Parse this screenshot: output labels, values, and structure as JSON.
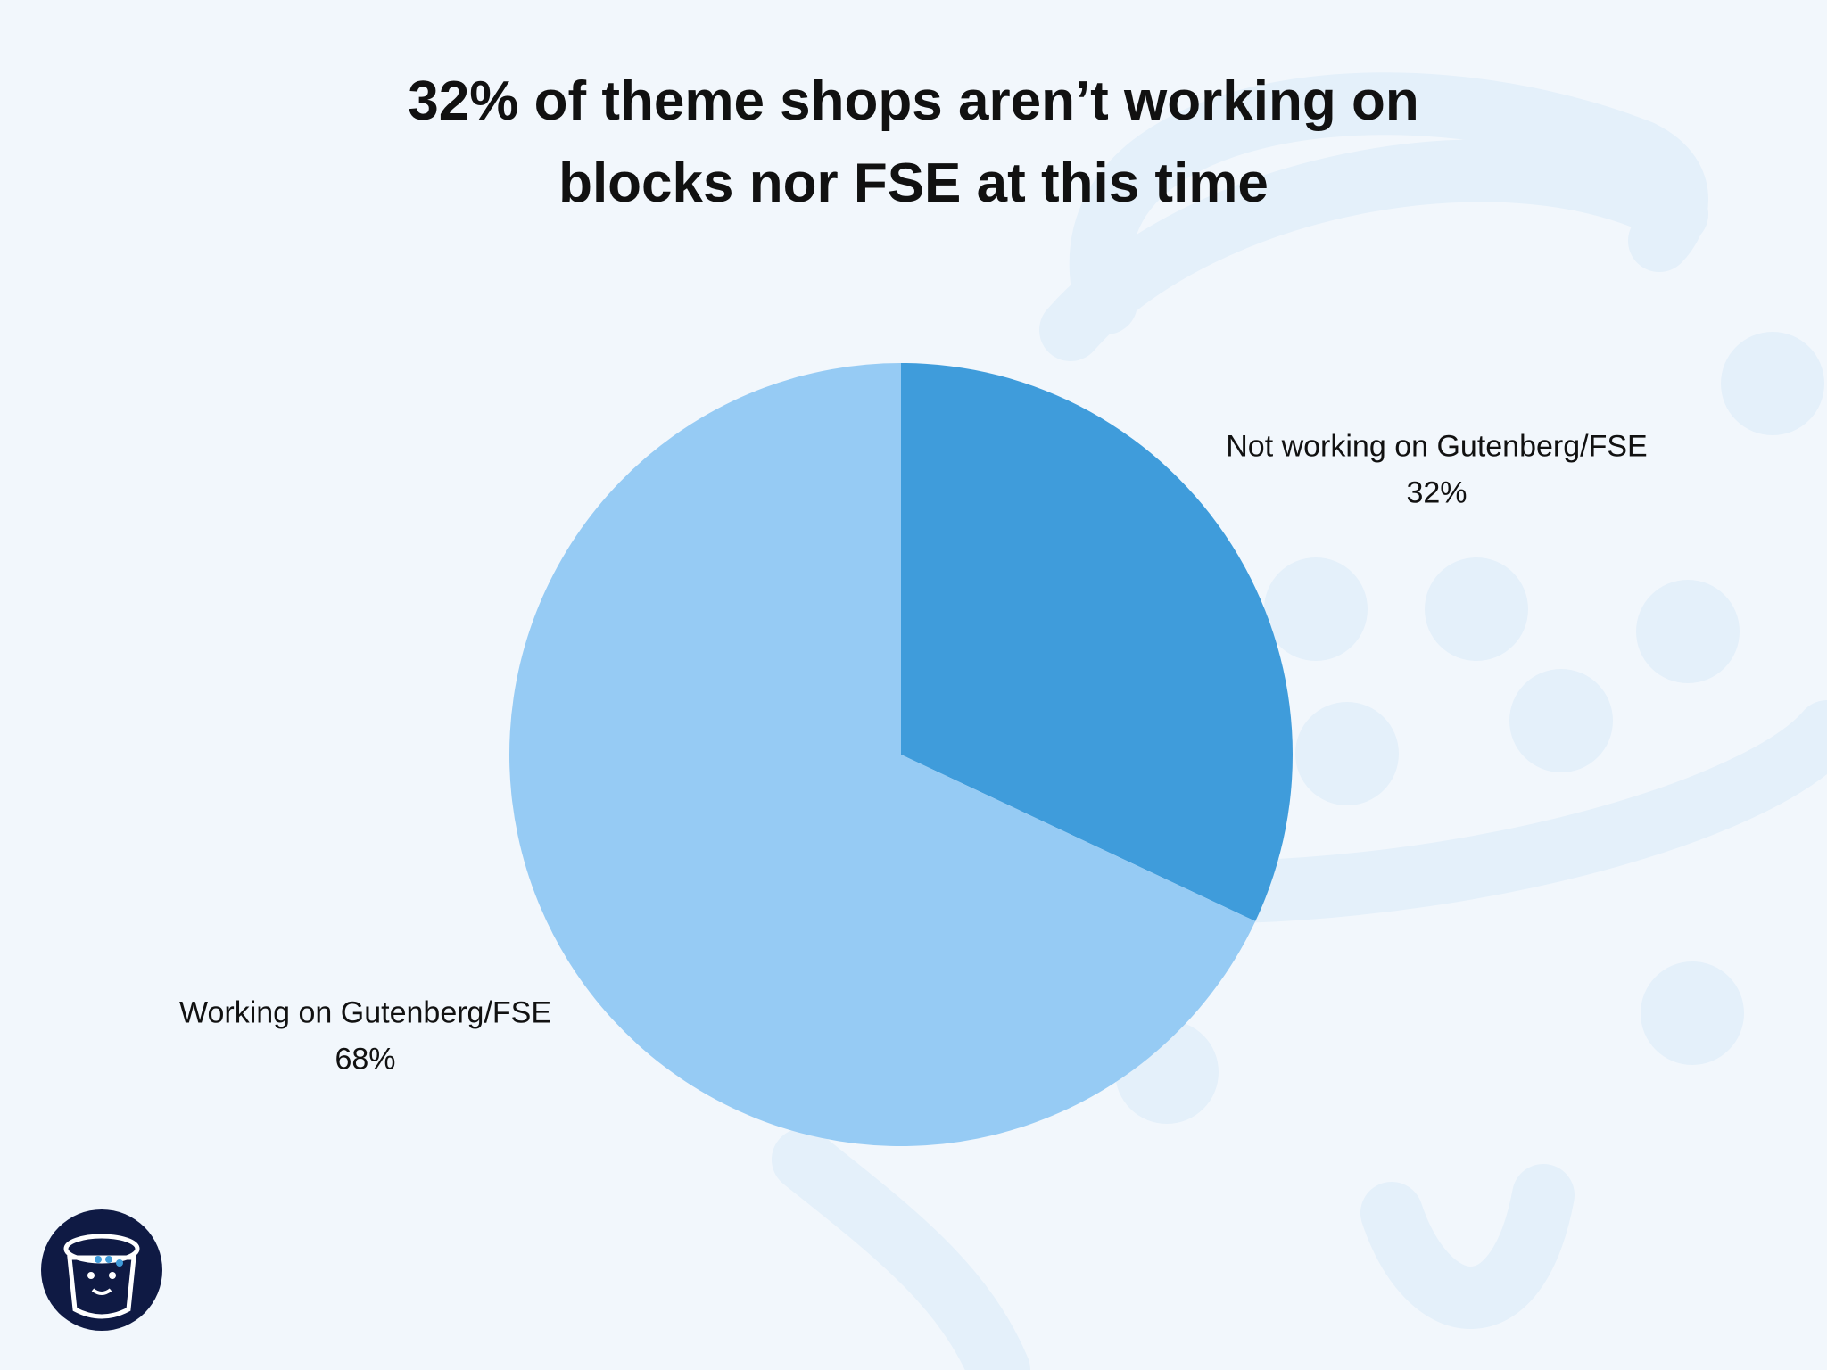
{
  "chart_data": {
    "type": "pie",
    "title": "32% of theme shops aren’t working on blocks nor FSE at this time",
    "categories": [
      "Not working on Gutenberg/FSE",
      "Working on Gutenberg/FSE"
    ],
    "values": [
      32,
      68
    ],
    "value_labels": [
      "32%",
      "68%"
    ],
    "colors": [
      "#3f9cdb",
      "#96cbf4"
    ]
  }
}
